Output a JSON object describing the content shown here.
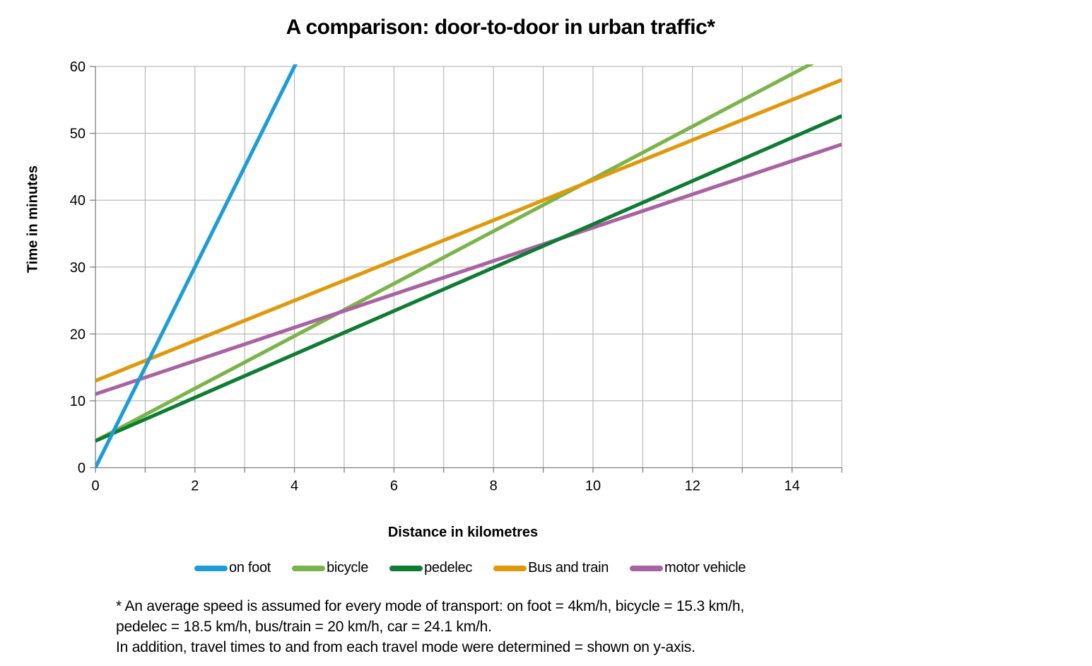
{
  "chart_data": {
    "type": "line",
    "title": "A comparison: door-to-door in urban traffic*",
    "xlabel": "Distance in kilometres",
    "ylabel": "Time in minutes",
    "xlim": [
      0,
      15
    ],
    "ylim": [
      0,
      60
    ],
    "grid": true,
    "legend_position": "bottom",
    "x_ticks_labeled": [
      0,
      2,
      4,
      6,
      8,
      10,
      12,
      14
    ],
    "x_minor_tick_step": 1,
    "y_ticks": [
      0,
      10,
      20,
      30,
      40,
      50,
      60
    ],
    "series": [
      {
        "name": "on foot",
        "color": "#1C9CD8",
        "speed_kmh": 4,
        "access_time_min": 0,
        "slope_min_per_km": 15,
        "points": [
          [
            0,
            0
          ],
          [
            4,
            60
          ]
        ]
      },
      {
        "name": "bicycle",
        "color": "#7AB44A",
        "speed_kmh": 15.3,
        "access_time_min": 4,
        "slope_min_per_km": 3.92,
        "points": [
          [
            0,
            4
          ],
          [
            14.3,
            60
          ]
        ]
      },
      {
        "name": "pedelec",
        "color": "#0E7D33",
        "speed_kmh": 18.5,
        "access_time_min": 4,
        "slope_min_per_km": 3.24,
        "points": [
          [
            0,
            4
          ],
          [
            15,
            52.6
          ]
        ]
      },
      {
        "name": "Bus and train",
        "color": "#E0990B",
        "speed_kmh": 20,
        "access_time_min": 13,
        "slope_min_per_km": 3.0,
        "points": [
          [
            0,
            13
          ],
          [
            15,
            58
          ]
        ]
      },
      {
        "name": "motor vehicle",
        "color": "#AA63A2",
        "speed_kmh": 24.1,
        "access_time_min": 11,
        "slope_min_per_km": 2.49,
        "points": [
          [
            0,
            11
          ],
          [
            15,
            48.3
          ]
        ]
      }
    ]
  },
  "colors": {
    "grid": "#ABABAB",
    "axis": "#7F7F7F",
    "text": "#000000"
  },
  "footnote": {
    "lines": [
      "* An average speed is assumed for every mode of transport: on foot = 4km/h, bicycle = 15.3 km/h,",
      "pedelec = 18.5 km/h, bus/train = 20 km/h, car = 24.1 km/h.",
      "In addition, travel times to and from each travel mode were determined = shown on y-axis."
    ]
  }
}
